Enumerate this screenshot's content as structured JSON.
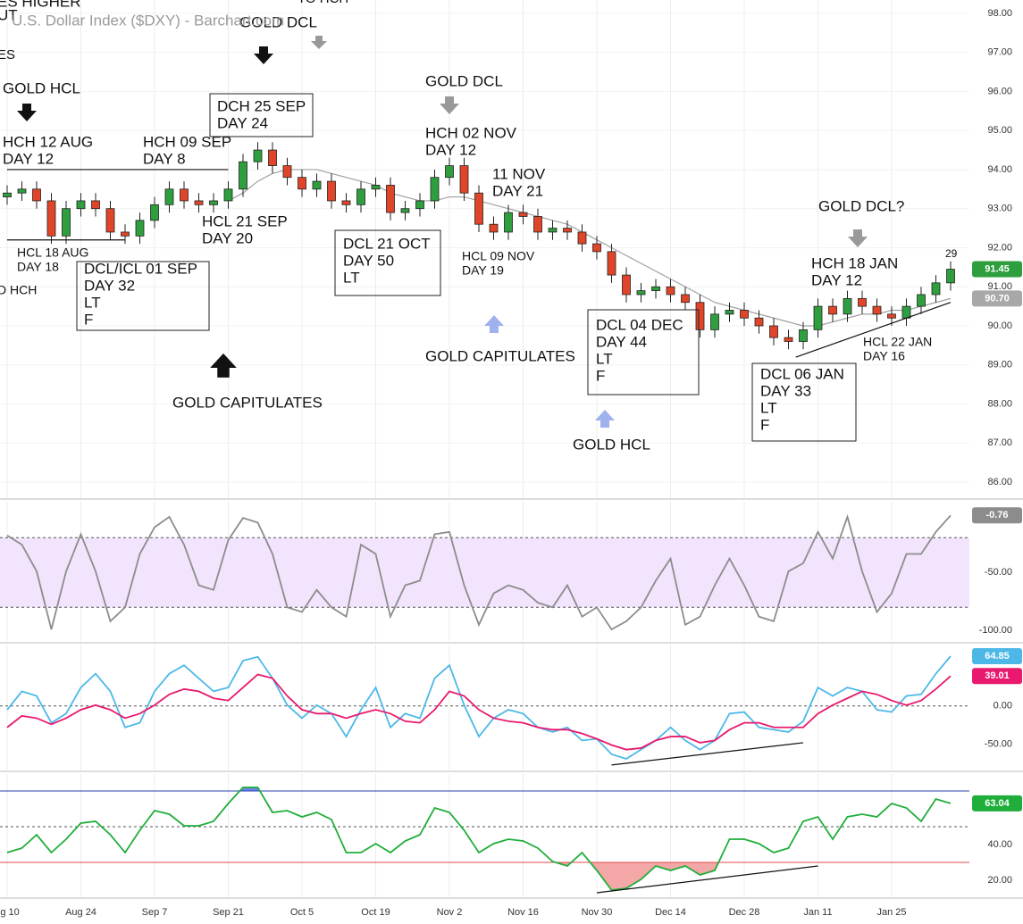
{
  "chart_data": [
    {
      "type": "candlestick",
      "title": "U.S. Dollar Index ($DXY) - Barchart.com",
      "open": [
        93.3,
        93.4,
        93.5,
        93.2,
        92.3,
        93.0,
        93.2,
        93.0,
        92.4,
        92.3,
        92.7,
        93.1,
        93.5,
        93.2,
        93.1,
        93.2,
        93.5,
        94.2,
        94.5,
        94.1,
        93.8,
        93.5,
        93.7,
        93.2,
        93.1,
        93.5,
        93.6,
        92.9,
        93.0,
        93.2,
        93.8,
        94.1,
        93.4,
        92.6,
        92.4,
        92.9,
        92.8,
        92.4,
        92.5,
        92.4,
        92.1,
        91.9,
        91.3,
        90.8,
        90.9,
        91.0,
        90.8,
        90.6,
        89.9,
        90.3,
        90.4,
        90.2,
        90.0,
        89.7,
        89.6,
        89.9,
        90.5,
        90.3,
        90.7,
        90.5,
        90.3,
        90.2,
        90.5,
        90.8,
        91.1
      ],
      "high": [
        93.6,
        93.7,
        93.7,
        93.4,
        93.2,
        93.4,
        93.4,
        93.2,
        92.6,
        92.9,
        93.3,
        93.7,
        93.7,
        93.4,
        93.4,
        93.7,
        94.4,
        94.7,
        94.7,
        94.3,
        94.0,
        93.9,
        93.9,
        93.4,
        93.7,
        93.8,
        93.8,
        93.2,
        93.4,
        94.0,
        94.3,
        94.3,
        93.6,
        92.8,
        93.1,
        93.1,
        93.0,
        92.7,
        92.7,
        92.6,
        92.3,
        92.1,
        91.5,
        91.1,
        91.2,
        91.2,
        91.0,
        90.8,
        90.5,
        90.6,
        90.6,
        90.4,
        90.2,
        89.9,
        90.1,
        90.7,
        90.7,
        90.9,
        90.9,
        90.7,
        90.5,
        90.7,
        91.0,
        91.3,
        91.65
      ],
      "low": [
        93.1,
        93.2,
        93.0,
        92.1,
        92.1,
        92.8,
        92.8,
        92.2,
        92.1,
        92.1,
        92.5,
        92.9,
        93.0,
        92.9,
        92.9,
        93.0,
        93.3,
        94.0,
        93.9,
        93.6,
        93.3,
        93.3,
        93.0,
        92.9,
        92.9,
        93.3,
        92.7,
        92.7,
        92.8,
        93.0,
        93.6,
        93.2,
        92.4,
        92.2,
        92.2,
        92.6,
        92.2,
        92.2,
        92.2,
        91.9,
        91.7,
        91.1,
        90.6,
        90.6,
        90.7,
        90.6,
        90.4,
        89.7,
        89.7,
        90.1,
        90.0,
        89.8,
        89.5,
        89.4,
        89.4,
        89.7,
        90.1,
        90.1,
        90.3,
        90.1,
        90.0,
        90.0,
        90.3,
        90.6,
        90.9
      ],
      "close": [
        93.4,
        93.5,
        93.2,
        92.3,
        93.0,
        93.2,
        93.0,
        92.4,
        92.3,
        92.7,
        93.1,
        93.5,
        93.2,
        93.1,
        93.2,
        93.5,
        94.2,
        94.5,
        94.1,
        93.8,
        93.5,
        93.7,
        93.2,
        93.1,
        93.5,
        93.6,
        92.9,
        93.0,
        93.2,
        93.8,
        94.1,
        93.4,
        92.6,
        92.4,
        92.9,
        92.8,
        92.4,
        92.5,
        92.4,
        92.1,
        91.9,
        91.3,
        90.8,
        90.9,
        91.0,
        90.8,
        90.6,
        89.9,
        90.3,
        90.4,
        90.2,
        90.0,
        89.7,
        89.6,
        89.9,
        90.5,
        90.3,
        90.7,
        90.5,
        90.3,
        90.2,
        90.5,
        90.8,
        91.1,
        91.45
      ],
      "up_color": "#2e9e3e",
      "down_color": "#e0452a",
      "ma": {
        "color": "#a0a0a0",
        "values": [
          null,
          null,
          null,
          null,
          null,
          null,
          null,
          null,
          null,
          null,
          null,
          null,
          null,
          null,
          null,
          93.2,
          93.4,
          93.7,
          93.9,
          94.0,
          94.0,
          94.0,
          93.9,
          93.8,
          93.7,
          93.6,
          93.4,
          93.3,
          93.2,
          93.2,
          93.3,
          93.3,
          93.2,
          93.1,
          93.0,
          92.9,
          92.8,
          92.7,
          92.6,
          92.4,
          92.2,
          92.0,
          91.8,
          91.6,
          91.4,
          91.2,
          91.0,
          90.8,
          90.6,
          90.5,
          90.4,
          90.3,
          90.2,
          90.1,
          90.0,
          90.0,
          90.1,
          90.2,
          90.3,
          90.3,
          90.4,
          90.4,
          90.5,
          90.6,
          90.7
        ],
        "value_labels": [
          null,
          null,
          null,
          null,
          null,
          null,
          null,
          null,
          null,
          null,
          null,
          null,
          null,
          null,
          null,
          null,
          null,
          null,
          null,
          null,
          null,
          null,
          null,
          null,
          null,
          null,
          null,
          null,
          null,
          null,
          null,
          null,
          null,
          null,
          null,
          null,
          null,
          null,
          null,
          null,
          null,
          null,
          null,
          null,
          null,
          null,
          null,
          null,
          null,
          null,
          null,
          null,
          null,
          null,
          null,
          null,
          null,
          null,
          null,
          null,
          null,
          null,
          null,
          null,
          "90.70"
        ]
      },
      "ylim": [
        85.59,
        98.34
      ],
      "yticks": [
        {
          "value": 98,
          "label": "98.00"
        },
        {
          "value": 97,
          "label": "97.00"
        },
        {
          "value": 96,
          "label": "96.00"
        },
        {
          "value": 95,
          "label": "95.00"
        },
        {
          "value": 94,
          "label": "94.00"
        },
        {
          "value": 93,
          "label": "93.00"
        },
        {
          "value": 92,
          "label": "92.00"
        },
        {
          "value": 91,
          "label": "91.00"
        },
        {
          "value": 90,
          "label": "90.00"
        },
        {
          "value": 89,
          "label": "89.00"
        },
        {
          "value": 88,
          "label": "88.00"
        },
        {
          "value": 87,
          "label": "87.00"
        },
        {
          "value": 86,
          "label": "86.00"
        }
      ],
      "grid": true,
      "lines": [
        {
          "x": [
            0,
            15
          ],
          "y": [
            94.0,
            94.0
          ]
        },
        {
          "x": [
            0,
            8
          ],
          "y": [
            92.2,
            92.2
          ]
        },
        {
          "x": [
            53.5,
            64
          ],
          "y": [
            89.2,
            90.6
          ]
        }
      ],
      "annotations": [
        {
          "lines": [
            "ES HIGHER",
            "UT"
          ]
        },
        {
          "lines": [
            "TO HCH"
          ]
        },
        {
          "lines": [
            "GOLD DCL"
          ]
        },
        {
          "lines": [
            "ES"
          ]
        },
        {
          "lines": [
            "GOLD HCL"
          ]
        },
        {
          "lines": [
            "HCH 12 AUG",
            "DAY 12"
          ]
        },
        {
          "lines": [
            "HCH 09 SEP",
            "DAY 8"
          ]
        },
        {
          "lines": [
            "DCH 25 SEP",
            "DAY 24"
          ],
          "boxed": true
        },
        {
          "lines": [
            "GOLD DCL"
          ]
        },
        {
          "lines": [
            "HCH 02 NOV",
            "DAY 12"
          ]
        },
        {
          "lines": [
            "11 NOV",
            "DAY 21"
          ]
        },
        {
          "lines": [
            "HCL 21 SEP",
            "DAY 20"
          ]
        },
        {
          "lines": [
            "HCL 18 AUG",
            "DAY 18"
          ]
        },
        {
          "lines": [
            "D HCH"
          ]
        },
        {
          "lines": [
            "DCL/ICL 01 SEP",
            "DAY 32",
            "LT",
            "F"
          ],
          "boxed": true
        },
        {
          "lines": [
            "DCL 21 OCT",
            "DAY 50",
            "LT"
          ],
          "boxed": true
        },
        {
          "lines": [
            "HCL 09 NOV",
            "DAY 19"
          ]
        },
        {
          "lines": [
            "GOLD CAPITULATES"
          ]
        },
        {
          "lines": [
            "GOLD CAPITULATES"
          ]
        },
        {
          "lines": [
            "DCL 04 DEC",
            "DAY 44",
            "LT",
            "F"
          ],
          "boxed": true
        },
        {
          "lines": [
            "GOLD HCL"
          ]
        },
        {
          "lines": [
            "GOLD DCL?"
          ]
        },
        {
          "lines": [
            "HCH 18 JAN",
            "DAY 12"
          ]
        },
        {
          "lines": [
            "HCL 22 JAN",
            "DAY 16"
          ]
        },
        {
          "lines": [
            "DCL 06 JAN",
            "DAY 33",
            "LT",
            "F"
          ],
          "boxed": true
        },
        {
          "lines": [
            "29"
          ]
        }
      ]
    },
    {
      "type": "line",
      "series": [
        {
          "color": "#8c8c8c",
          "values": [
            -18,
            -26,
            -49,
            -99,
            -49,
            -17,
            -49,
            -92,
            -80,
            -34,
            -11,
            -2,
            -26,
            -61,
            -65,
            -22,
            -3,
            -7,
            -34,
            -80,
            -84,
            -65,
            -80,
            -88,
            -26,
            -34,
            -88,
            -61,
            -57,
            -17,
            -15,
            -61,
            -95,
            -68,
            -61,
            -65,
            -76,
            -80,
            -61,
            -88,
            -80,
            -99,
            -92,
            -80,
            -57,
            -38,
            -95,
            -88,
            -61,
            -38,
            -61,
            -88,
            -92,
            -49,
            -42,
            -15,
            -38,
            -2,
            -49,
            -84,
            -68,
            -34,
            -34,
            -15,
            -0.76
          ]
        }
      ],
      "ylim": [
        -109,
        11
      ],
      "yticks": [
        {
          "value": -50,
          "label": "-50.00"
        },
        {
          "value": -100,
          "label": "-100.00"
        }
      ],
      "band": {
        "range": [
          -80,
          -20
        ],
        "color": "#f1e4fc"
      },
      "levels": [
        {
          "value": -20,
          "color": "#555555",
          "dash": true
        },
        {
          "value": -80,
          "color": "#555555",
          "dash": true
        }
      ]
    },
    {
      "type": "line",
      "series": [
        {
          "color": "#4db8e8",
          "values": [
            -5,
            19,
            13,
            -22,
            -10,
            24,
            42,
            19,
            -28,
            -22,
            19,
            42,
            53,
            36,
            19,
            24,
            59,
            64,
            36,
            1,
            -16,
            1,
            -10,
            -40,
            -5,
            24,
            -28,
            -10,
            -16,
            36,
            53,
            1,
            -40,
            -16,
            -5,
            -10,
            -28,
            -34,
            -28,
            -45,
            -43,
            -63,
            -69,
            -57,
            -45,
            -28,
            -45,
            -57,
            -45,
            -10,
            -8,
            -28,
            -31,
            -34,
            -20,
            24,
            13,
            24,
            19,
            -5,
            -8,
            13,
            15,
            42,
            64.85
          ]
        },
        {
          "color": "#e8196e",
          "values": [
            -28,
            -13,
            -16,
            -24,
            -16,
            -5,
            1,
            -5,
            -16,
            -10,
            1,
            15,
            22,
            19,
            10,
            7,
            24,
            41,
            36,
            13,
            -5,
            -10,
            -10,
            -16,
            -10,
            -5,
            -10,
            -20,
            -22,
            -5,
            19,
            13,
            -5,
            -16,
            -20,
            -22,
            -28,
            -31,
            -31,
            -36,
            -43,
            -51,
            -57,
            -55,
            -45,
            -40,
            -40,
            -48,
            -45,
            -31,
            -22,
            -22,
            -28,
            -28,
            -28,
            -10,
            1,
            10,
            19,
            15,
            7,
            1,
            7,
            22,
            39.01
          ]
        }
      ],
      "ylim": [
        -83,
        80
      ],
      "yticks": [
        {
          "value": 0,
          "label": "0.00"
        },
        {
          "value": -50,
          "label": "-50.00"
        }
      ],
      "levels": [
        {
          "value": 0,
          "color": "#555555",
          "dash": true
        }
      ],
      "lines": [
        {
          "x": [
            41,
            54
          ],
          "y": [
            -77,
            -48
          ]
        }
      ]
    },
    {
      "type": "line",
      "categories": [
        "ug 10",
        null,
        null,
        null,
        null,
        "Aug 24",
        null,
        null,
        null,
        null,
        "Sep 7",
        null,
        null,
        null,
        null,
        "Sep 21",
        null,
        null,
        null,
        null,
        "Oct 5",
        null,
        null,
        null,
        null,
        "Oct 19",
        null,
        null,
        null,
        null,
        "Nov 2",
        null,
        null,
        null,
        null,
        "Nov 16",
        null,
        null,
        null,
        null,
        "Nov 30",
        null,
        null,
        null,
        null,
        "Dec 14",
        null,
        null,
        null,
        null,
        "Dec 28",
        null,
        null,
        null,
        null,
        "Jan 11",
        null,
        null,
        null,
        null,
        "Jan 25",
        null,
        null,
        null,
        null
      ],
      "series": [
        {
          "color": "#1fae3a",
          "values": [
            35.5,
            38,
            45.5,
            35.5,
            43,
            52,
            53,
            45.5,
            35.5,
            48,
            59,
            57,
            50.5,
            50.5,
            53,
            63,
            72,
            72,
            58,
            59,
            55.5,
            58,
            54,
            35.5,
            35.5,
            40.5,
            35.5,
            42,
            45.5,
            60.5,
            58,
            48,
            35.5,
            40.5,
            43,
            42,
            38,
            30.5,
            28,
            35.5,
            25.5,
            14.5,
            15.5,
            20.5,
            28,
            25.5,
            28,
            23,
            25.5,
            43,
            43,
            40.5,
            35.5,
            38,
            53,
            55.5,
            43,
            55.5,
            57,
            55.5,
            63,
            60.5,
            53,
            65.5,
            63.04
          ]
        }
      ],
      "ylim": [
        10.5,
        80
      ],
      "yticks": [
        {
          "value": 40,
          "label": "40.00"
        },
        {
          "value": 20,
          "label": "20.00"
        }
      ],
      "levels": [
        {
          "value": 70,
          "color": "#2a3fb0",
          "fill": "#3d5be0"
        },
        {
          "value": 50,
          "color": "#555555",
          "dash": true
        },
        {
          "value": 30,
          "color": "#e04a4a",
          "fill": "#f08a8a"
        }
      ],
      "lines": [
        {
          "x": [
            40,
            55
          ],
          "y": [
            13,
            28
          ]
        }
      ]
    }
  ]
}
